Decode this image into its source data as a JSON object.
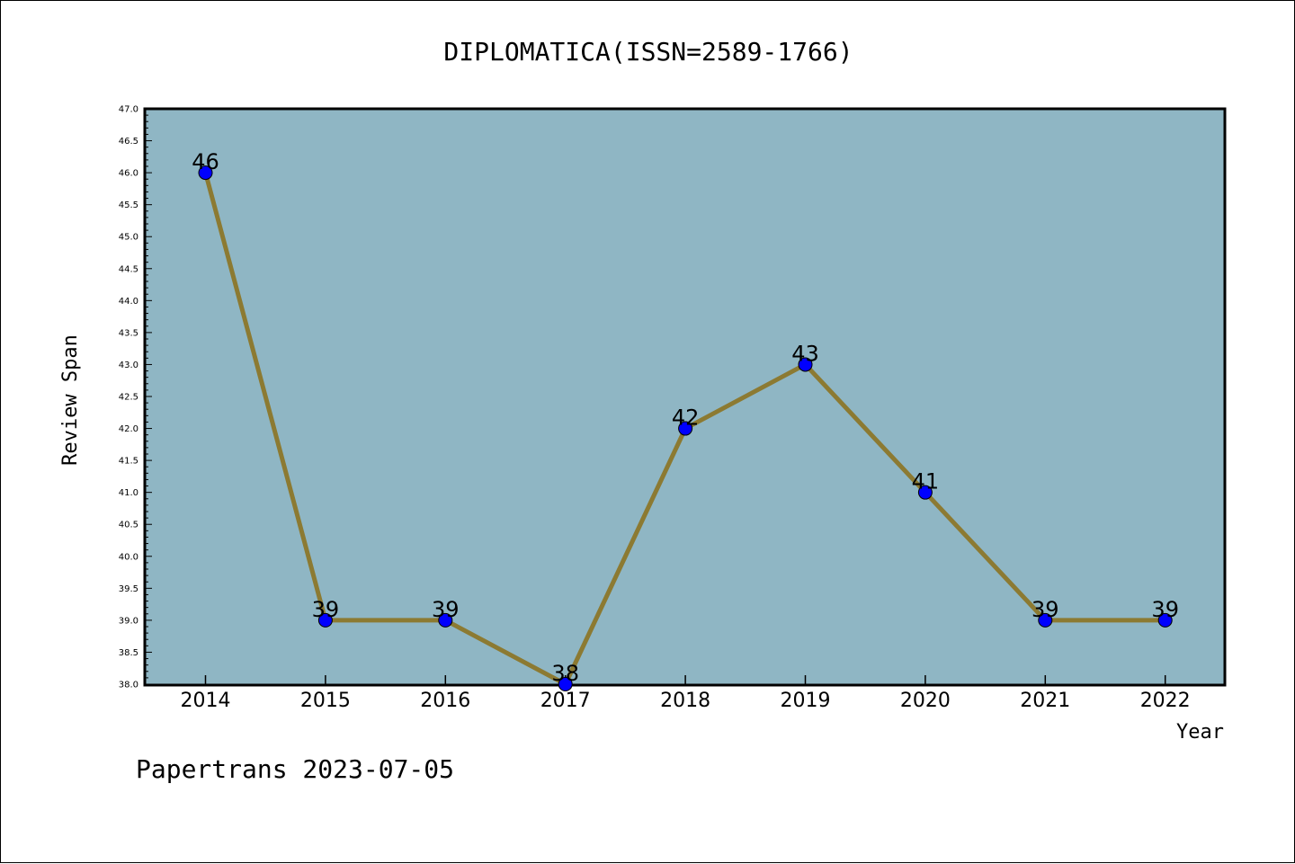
{
  "chart_data": {
    "type": "line",
    "title": "DIPLOMATICA(ISSN=2589-1766)",
    "xlabel": "Year",
    "ylabel": "Review Span",
    "categories": [
      "2014",
      "2015",
      "2016",
      "2017",
      "2018",
      "2019",
      "2020",
      "2021",
      "2022"
    ],
    "values": [
      46,
      39,
      39,
      38,
      42,
      43,
      41,
      39,
      39
    ],
    "data_labels": [
      "46",
      "39",
      "39",
      "38",
      "42",
      "43",
      "41",
      "39",
      "39"
    ],
    "ylim": [
      38.0,
      47.0
    ],
    "yticks": [
      "38.0",
      "38.5",
      "39.0",
      "39.5",
      "40.0",
      "40.5",
      "41.0",
      "41.5",
      "42.0",
      "42.5",
      "43.0",
      "43.5",
      "44.0",
      "44.5",
      "45.0",
      "45.5",
      "46.0",
      "46.5",
      "47.0"
    ],
    "grid": false,
    "legend": "none",
    "colors": {
      "plot_background": "#8fb6c4",
      "line": "#8c7a32",
      "marker": "#0000ff"
    }
  },
  "footer": {
    "text": "Papertrans 2023-07-05"
  }
}
